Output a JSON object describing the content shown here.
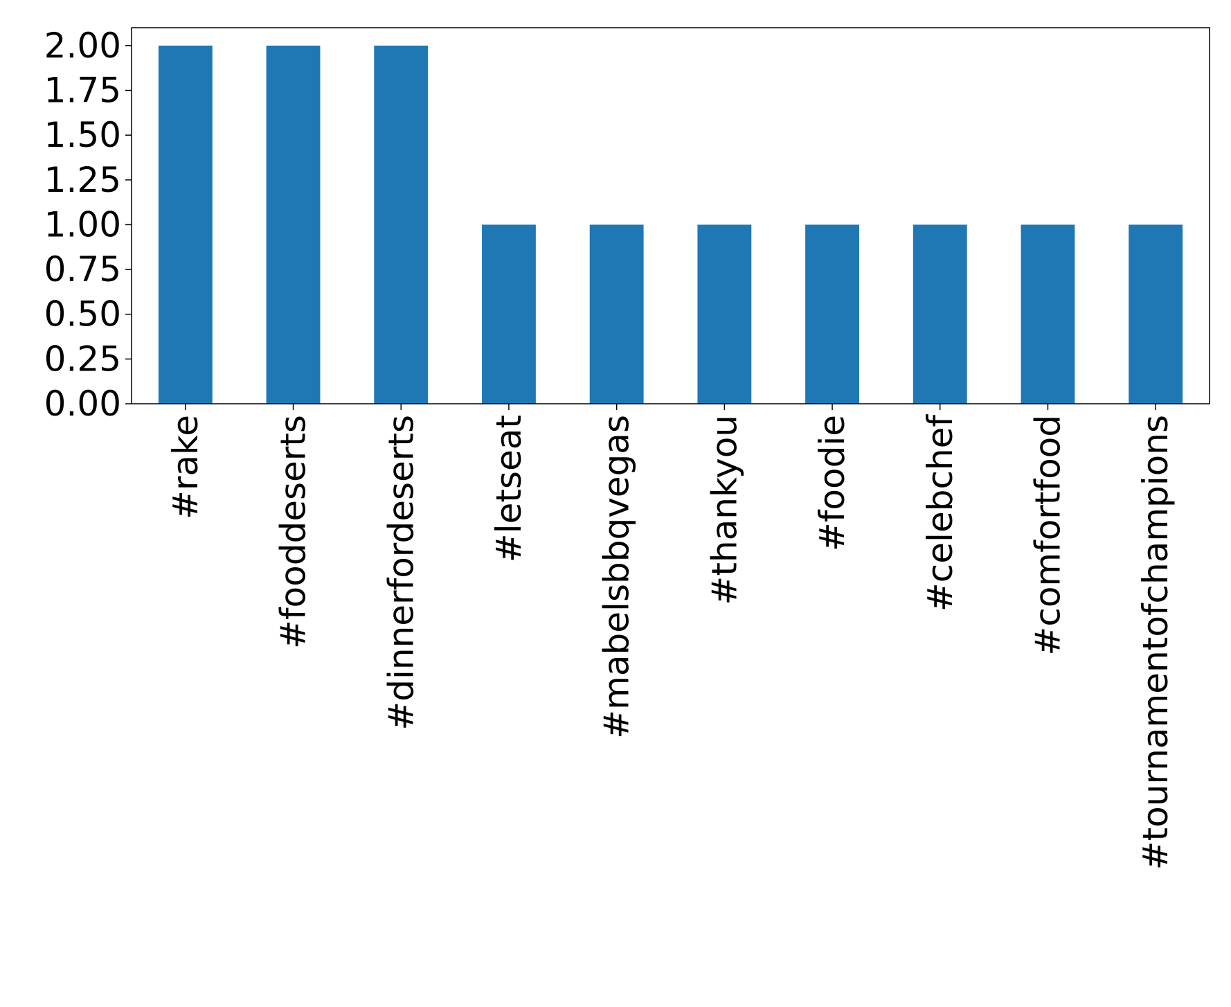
{
  "chart_data": {
    "type": "bar",
    "title": "",
    "xlabel": "",
    "ylabel": "",
    "categories": [
      "#rake",
      "#fooddeserts",
      "#dinnerfordeserts",
      "#letseat",
      "#mabelsbbqvegas",
      "#thankyou",
      "#foodie",
      "#celebchef",
      "#comfortfood",
      "#tournamentofchampions"
    ],
    "values": [
      2,
      2,
      2,
      1,
      1,
      1,
      1,
      1,
      1,
      1
    ],
    "ylim": [
      0,
      2.1
    ],
    "yticks": [
      0,
      0.25,
      0.5,
      0.75,
      1.0,
      1.25,
      1.5,
      1.75,
      2.0
    ],
    "ytick_labels": [
      "0.00",
      "0.25",
      "0.50",
      "0.75",
      "1.00",
      "1.25",
      "1.50",
      "1.75",
      "2.00"
    ],
    "bar_color": "#1f77b4",
    "grid": false,
    "legend": "none"
  }
}
